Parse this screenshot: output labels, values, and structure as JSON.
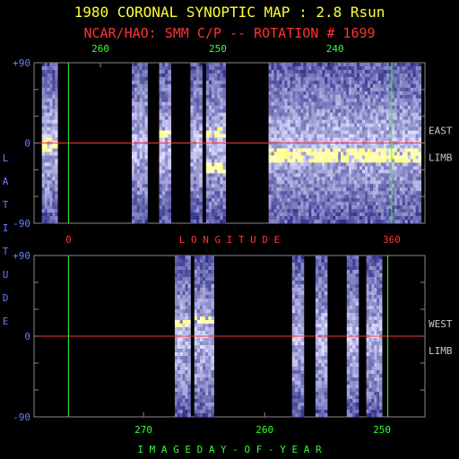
{
  "header": {
    "title": "1980 CORONAL SYNOPTIC MAP : 2.8 Rsun",
    "subtitle": "NCAR/HAO: SMM C/P -- ROTATION # 1699"
  },
  "colors": {
    "title": "#ffff33",
    "subtitle": "#ff3333",
    "axis_label": "#6b7cff",
    "green_marker": "#33ff33",
    "red_marker": "#ff3333",
    "limb_label": "#c8c8c8"
  },
  "chart_data": [
    {
      "type": "heatmap",
      "panel": "east-limb",
      "title": "",
      "side_labels": [
        "EAST",
        "LIMB"
      ],
      "ylabel": "LATITUDE",
      "y_ticks": [
        "+90",
        "0",
        "-90"
      ],
      "ylim": [
        -90,
        90
      ],
      "top_axis_ticks": [
        "260",
        "250",
        "240"
      ],
      "bottom_axis_ticks": [
        "0",
        "360"
      ],
      "xlabel": "LONGITUDE",
      "equator_line": 0,
      "strips": [
        {
          "start": 0.02,
          "end": 0.06,
          "bright": [
            [
              0.45,
              0.55
            ]
          ]
        },
        {
          "start": 0.25,
          "end": 0.29,
          "bright": []
        },
        {
          "start": 0.32,
          "end": 0.35,
          "bright": [
            [
              0.42,
              0.46
            ]
          ]
        },
        {
          "start": 0.4,
          "end": 0.43,
          "bright": []
        },
        {
          "start": 0.44,
          "end": 0.49,
          "bright": [
            [
              0.38,
              0.45
            ],
            [
              0.62,
              0.68
            ]
          ]
        },
        {
          "start": 0.6,
          "end": 0.99,
          "bright": [
            [
              0.52,
              0.58
            ],
            [
              0.58,
              0.62
            ]
          ]
        }
      ]
    },
    {
      "type": "heatmap",
      "panel": "west-limb",
      "title": "",
      "side_labels": [
        "WEST",
        "LIMB"
      ],
      "y_ticks": [
        "+90",
        "0",
        "-90"
      ],
      "ylim": [
        -90,
        90
      ],
      "bottom_axis_ticks": [
        "270",
        "260",
        "250"
      ],
      "xlabel": "IMAGE DAY-OF-YEAR",
      "equator_line": 0,
      "strips": [
        {
          "start": 0.36,
          "end": 0.4,
          "bright": [
            [
              0.38,
              0.44
            ]
          ]
        },
        {
          "start": 0.41,
          "end": 0.46,
          "bright": [
            [
              0.36,
              0.42
            ]
          ]
        },
        {
          "start": 0.66,
          "end": 0.69,
          "bright": []
        },
        {
          "start": 0.72,
          "end": 0.75,
          "bright": []
        },
        {
          "start": 0.8,
          "end": 0.83,
          "bright": []
        },
        {
          "start": 0.85,
          "end": 0.89,
          "bright": []
        }
      ]
    }
  ]
}
